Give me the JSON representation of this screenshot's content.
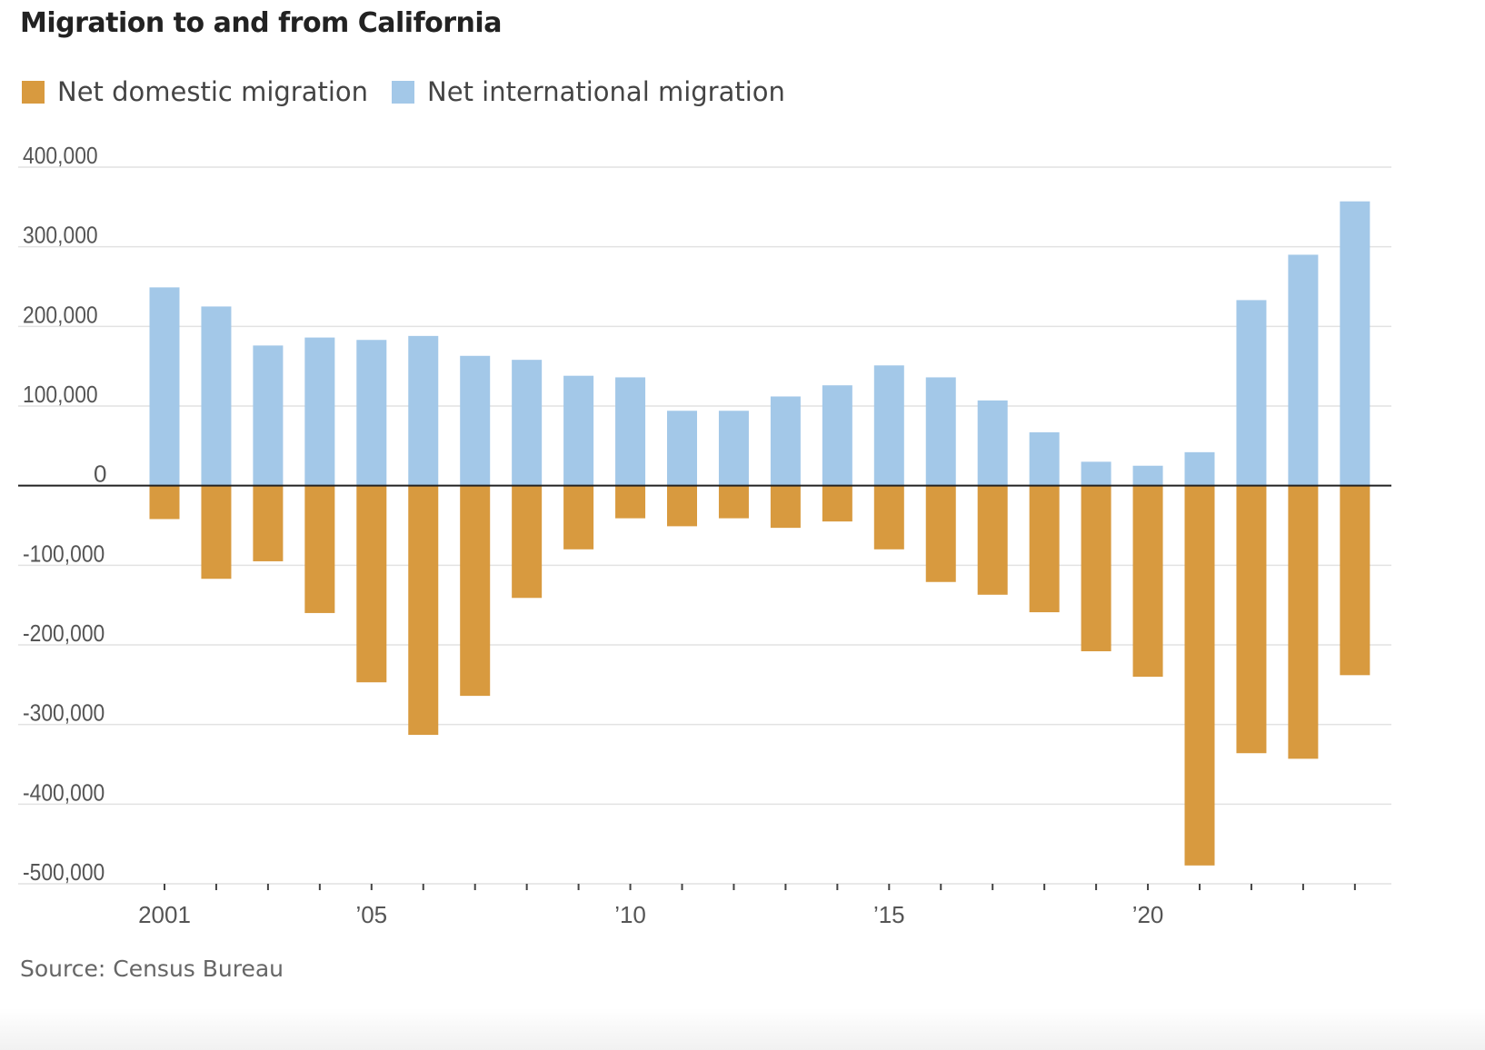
{
  "title": "Migration to and from California",
  "source": "Source: Census Bureau",
  "colors": {
    "domestic": "#d89a3f",
    "international": "#a3c8e8",
    "grid": "#e2e2e2",
    "zero_line": "#222222",
    "tick_label": "#555555"
  },
  "legend": [
    {
      "name": "Net domestic migration",
      "color": "#d89a3f"
    },
    {
      "name": "Net international migration",
      "color": "#a3c8e8"
    }
  ],
  "chart_data": {
    "type": "bar",
    "title": "Migration to and from California",
    "xlabel": "",
    "ylabel": "",
    "ylim": [
      -500000,
      400000
    ],
    "yticks": [
      400000,
      300000,
      200000,
      100000,
      0,
      -100000,
      -200000,
      -300000,
      -400000,
      -500000
    ],
    "ytick_labels": [
      "400,000",
      "300,000",
      "200,000",
      "100,000",
      "0",
      "-100,000",
      "-200,000",
      "-300,000",
      "-400,000",
      "-500,000"
    ],
    "categories": [
      2001,
      2002,
      2003,
      2004,
      2005,
      2006,
      2007,
      2008,
      2009,
      2010,
      2011,
      2012,
      2013,
      2014,
      2015,
      2016,
      2017,
      2018,
      2019,
      2020,
      2021,
      2022,
      2023,
      2024
    ],
    "xtick_labels": [
      {
        "year": 2001,
        "label": "2001"
      },
      {
        "year": 2005,
        "label": "’05"
      },
      {
        "year": 2010,
        "label": "’10"
      },
      {
        "year": 2015,
        "label": "’15"
      },
      {
        "year": 2020,
        "label": "’20"
      }
    ],
    "grid": true,
    "legend_position": "top-left",
    "series": [
      {
        "name": "Net domestic migration",
        "color": "#d89a3f",
        "values": [
          -42000,
          -117000,
          -95000,
          -160000,
          -247000,
          -313000,
          -264000,
          -141000,
          -80000,
          -41000,
          -51000,
          -41000,
          -53000,
          -45000,
          -80000,
          -121000,
          -137000,
          -159000,
          -208000,
          -240000,
          -477000,
          -336000,
          -343000,
          -238000
        ]
      },
      {
        "name": "Net international migration",
        "color": "#a3c8e8",
        "values": [
          249000,
          225000,
          176000,
          186000,
          183000,
          188000,
          163000,
          158000,
          138000,
          136000,
          94000,
          94000,
          112000,
          126000,
          151000,
          136000,
          107000,
          67000,
          30000,
          25000,
          42000,
          233000,
          290000,
          357000
        ]
      }
    ]
  }
}
